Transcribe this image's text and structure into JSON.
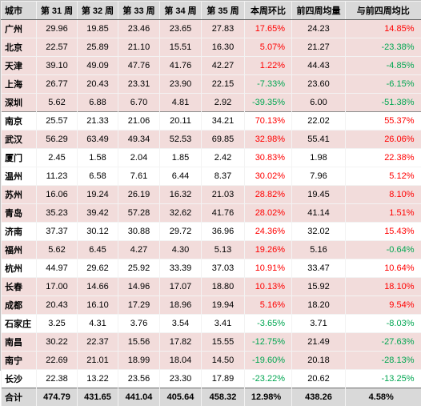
{
  "headers": [
    "城市",
    "第 31 周",
    "第 32 周",
    "第 33 周",
    "第 34 周",
    "第 35 周",
    "本周环比",
    "前四周均量",
    "与前四周均比"
  ],
  "colors": {
    "header_bg": "#d9d9d9",
    "pink_row": "#f2dcdb",
    "positive": "#ff0000",
    "negative": "#00a651"
  },
  "rows": [
    {
      "city": "广州",
      "w31": "29.96",
      "w32": "19.85",
      "w33": "23.46",
      "w34": "23.65",
      "w35": "27.83",
      "wow": "17.65%",
      "avg4": "24.23",
      "vs_avg": "14.85%"
    },
    {
      "city": "北京",
      "w31": "22.57",
      "w32": "25.89",
      "w33": "21.10",
      "w34": "15.51",
      "w35": "16.30",
      "wow": "5.07%",
      "avg4": "21.27",
      "vs_avg": "-23.38%"
    },
    {
      "city": "天津",
      "w31": "39.10",
      "w32": "49.09",
      "w33": "47.76",
      "w34": "41.76",
      "w35": "42.27",
      "wow": "1.22%",
      "avg4": "44.43",
      "vs_avg": "-4.85%"
    },
    {
      "city": "上海",
      "w31": "26.77",
      "w32": "20.43",
      "w33": "23.31",
      "w34": "23.90",
      "w35": "22.15",
      "wow": "-7.33%",
      "avg4": "23.60",
      "vs_avg": "-6.15%"
    },
    {
      "city": "深圳",
      "w31": "5.62",
      "w32": "6.88",
      "w33": "6.70",
      "w34": "4.81",
      "w35": "2.92",
      "wow": "-39.35%",
      "avg4": "6.00",
      "vs_avg": "-51.38%"
    },
    {
      "city": "南京",
      "w31": "25.57",
      "w32": "21.33",
      "w33": "21.06",
      "w34": "20.11",
      "w35": "34.21",
      "wow": "70.13%",
      "avg4": "22.02",
      "vs_avg": "55.37%"
    },
    {
      "city": "武汉",
      "w31": "56.29",
      "w32": "63.49",
      "w33": "49.34",
      "w34": "52.53",
      "w35": "69.85",
      "wow": "32.98%",
      "avg4": "55.41",
      "vs_avg": "26.06%"
    },
    {
      "city": "厦门",
      "w31": "2.45",
      "w32": "1.58",
      "w33": "2.04",
      "w34": "1.85",
      "w35": "2.42",
      "wow": "30.83%",
      "avg4": "1.98",
      "vs_avg": "22.38%"
    },
    {
      "city": "温州",
      "w31": "11.23",
      "w32": "6.58",
      "w33": "7.61",
      "w34": "6.44",
      "w35": "8.37",
      "wow": "30.02%",
      "avg4": "7.96",
      "vs_avg": "5.12%"
    },
    {
      "city": "苏州",
      "w31": "16.06",
      "w32": "19.24",
      "w33": "26.19",
      "w34": "16.32",
      "w35": "21.03",
      "wow": "28.82%",
      "avg4": "19.45",
      "vs_avg": "8.10%"
    },
    {
      "city": "青岛",
      "w31": "35.23",
      "w32": "39.42",
      "w33": "57.28",
      "w34": "32.62",
      "w35": "41.76",
      "wow": "28.02%",
      "avg4": "41.14",
      "vs_avg": "1.51%"
    },
    {
      "city": "济南",
      "w31": "37.37",
      "w32": "30.12",
      "w33": "30.88",
      "w34": "29.72",
      "w35": "36.96",
      "wow": "24.36%",
      "avg4": "32.02",
      "vs_avg": "15.43%"
    },
    {
      "city": "福州",
      "w31": "5.62",
      "w32": "6.45",
      "w33": "4.27",
      "w34": "4.30",
      "w35": "5.13",
      "wow": "19.26%",
      "avg4": "5.16",
      "vs_avg": "-0.64%"
    },
    {
      "city": "杭州",
      "w31": "44.97",
      "w32": "29.62",
      "w33": "25.92",
      "w34": "33.39",
      "w35": "37.03",
      "wow": "10.91%",
      "avg4": "33.47",
      "vs_avg": "10.64%"
    },
    {
      "city": "长春",
      "w31": "17.00",
      "w32": "14.66",
      "w33": "14.96",
      "w34": "17.07",
      "w35": "18.80",
      "wow": "10.13%",
      "avg4": "15.92",
      "vs_avg": "18.10%"
    },
    {
      "city": "成都",
      "w31": "20.43",
      "w32": "16.10",
      "w33": "17.29",
      "w34": "18.96",
      "w35": "19.94",
      "wow": "5.16%",
      "avg4": "18.20",
      "vs_avg": "9.54%"
    },
    {
      "city": "石家庄",
      "w31": "3.25",
      "w32": "4.31",
      "w33": "3.76",
      "w34": "3.54",
      "w35": "3.41",
      "wow": "-3.65%",
      "avg4": "3.71",
      "vs_avg": "-8.03%"
    },
    {
      "city": "南昌",
      "w31": "30.22",
      "w32": "22.37",
      "w33": "15.56",
      "w34": "17.82",
      "w35": "15.55",
      "wow": "-12.75%",
      "avg4": "21.49",
      "vs_avg": "-27.63%"
    },
    {
      "city": "南宁",
      "w31": "22.69",
      "w32": "21.01",
      "w33": "18.99",
      "w34": "18.04",
      "w35": "14.50",
      "wow": "-19.60%",
      "avg4": "20.18",
      "vs_avg": "-28.13%"
    },
    {
      "city": "长沙",
      "w31": "22.38",
      "w32": "13.22",
      "w33": "23.56",
      "w34": "23.30",
      "w35": "17.89",
      "wow": "-23.22%",
      "avg4": "20.62",
      "vs_avg": "-13.25%"
    }
  ],
  "total": {
    "city": "合计",
    "w31": "474.79",
    "w32": "431.65",
    "w33": "441.04",
    "w34": "405.64",
    "w35": "458.32",
    "wow": "12.98%",
    "avg4": "438.26",
    "vs_avg": "4.58%"
  }
}
